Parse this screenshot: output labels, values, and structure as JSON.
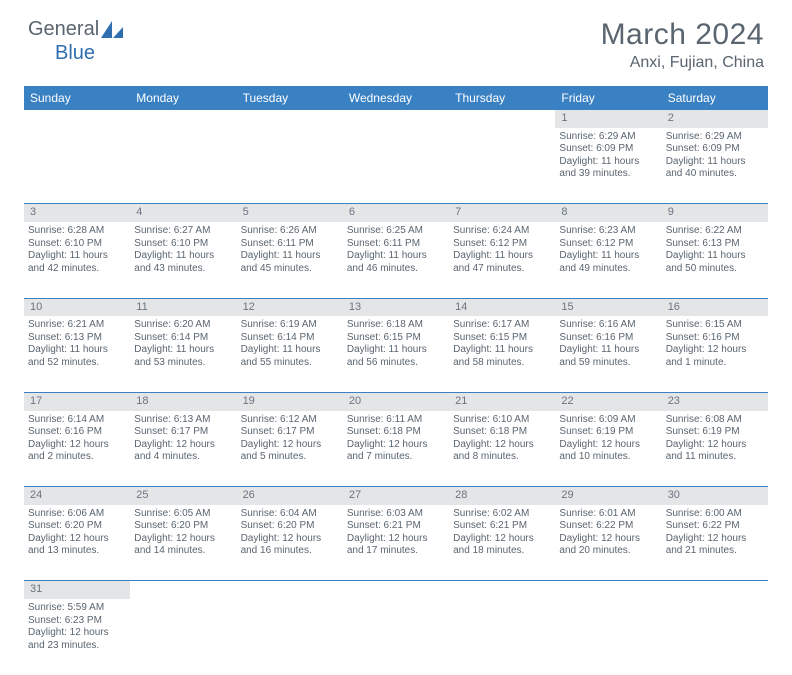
{
  "brand": {
    "text1": "General",
    "text2": "Blue",
    "color1": "#5a6570",
    "color2": "#2f6fb0"
  },
  "title": "March 2024",
  "location": "Anxi, Fujian, China",
  "colors": {
    "header_bg": "#3a81c4",
    "header_text": "#ffffff",
    "daynum_bg": "#e4e5e7",
    "border": "#3a81c4",
    "text": "#5a6570"
  },
  "weekdays": [
    "Sunday",
    "Monday",
    "Tuesday",
    "Wednesday",
    "Thursday",
    "Friday",
    "Saturday"
  ],
  "weeks": [
    [
      null,
      null,
      null,
      null,
      null,
      {
        "n": "1",
        "sunrise": "6:29 AM",
        "sunset": "6:09 PM",
        "day": "11 hours and 39 minutes."
      },
      {
        "n": "2",
        "sunrise": "6:29 AM",
        "sunset": "6:09 PM",
        "day": "11 hours and 40 minutes."
      }
    ],
    [
      {
        "n": "3",
        "sunrise": "6:28 AM",
        "sunset": "6:10 PM",
        "day": "11 hours and 42 minutes."
      },
      {
        "n": "4",
        "sunrise": "6:27 AM",
        "sunset": "6:10 PM",
        "day": "11 hours and 43 minutes."
      },
      {
        "n": "5",
        "sunrise": "6:26 AM",
        "sunset": "6:11 PM",
        "day": "11 hours and 45 minutes."
      },
      {
        "n": "6",
        "sunrise": "6:25 AM",
        "sunset": "6:11 PM",
        "day": "11 hours and 46 minutes."
      },
      {
        "n": "7",
        "sunrise": "6:24 AM",
        "sunset": "6:12 PM",
        "day": "11 hours and 47 minutes."
      },
      {
        "n": "8",
        "sunrise": "6:23 AM",
        "sunset": "6:12 PM",
        "day": "11 hours and 49 minutes."
      },
      {
        "n": "9",
        "sunrise": "6:22 AM",
        "sunset": "6:13 PM",
        "day": "11 hours and 50 minutes."
      }
    ],
    [
      {
        "n": "10",
        "sunrise": "6:21 AM",
        "sunset": "6:13 PM",
        "day": "11 hours and 52 minutes."
      },
      {
        "n": "11",
        "sunrise": "6:20 AM",
        "sunset": "6:14 PM",
        "day": "11 hours and 53 minutes."
      },
      {
        "n": "12",
        "sunrise": "6:19 AM",
        "sunset": "6:14 PM",
        "day": "11 hours and 55 minutes."
      },
      {
        "n": "13",
        "sunrise": "6:18 AM",
        "sunset": "6:15 PM",
        "day": "11 hours and 56 minutes."
      },
      {
        "n": "14",
        "sunrise": "6:17 AM",
        "sunset": "6:15 PM",
        "day": "11 hours and 58 minutes."
      },
      {
        "n": "15",
        "sunrise": "6:16 AM",
        "sunset": "6:16 PM",
        "day": "11 hours and 59 minutes."
      },
      {
        "n": "16",
        "sunrise": "6:15 AM",
        "sunset": "6:16 PM",
        "day": "12 hours and 1 minute."
      }
    ],
    [
      {
        "n": "17",
        "sunrise": "6:14 AM",
        "sunset": "6:16 PM",
        "day": "12 hours and 2 minutes."
      },
      {
        "n": "18",
        "sunrise": "6:13 AM",
        "sunset": "6:17 PM",
        "day": "12 hours and 4 minutes."
      },
      {
        "n": "19",
        "sunrise": "6:12 AM",
        "sunset": "6:17 PM",
        "day": "12 hours and 5 minutes."
      },
      {
        "n": "20",
        "sunrise": "6:11 AM",
        "sunset": "6:18 PM",
        "day": "12 hours and 7 minutes."
      },
      {
        "n": "21",
        "sunrise": "6:10 AM",
        "sunset": "6:18 PM",
        "day": "12 hours and 8 minutes."
      },
      {
        "n": "22",
        "sunrise": "6:09 AM",
        "sunset": "6:19 PM",
        "day": "12 hours and 10 minutes."
      },
      {
        "n": "23",
        "sunrise": "6:08 AM",
        "sunset": "6:19 PM",
        "day": "12 hours and 11 minutes."
      }
    ],
    [
      {
        "n": "24",
        "sunrise": "6:06 AM",
        "sunset": "6:20 PM",
        "day": "12 hours and 13 minutes."
      },
      {
        "n": "25",
        "sunrise": "6:05 AM",
        "sunset": "6:20 PM",
        "day": "12 hours and 14 minutes."
      },
      {
        "n": "26",
        "sunrise": "6:04 AM",
        "sunset": "6:20 PM",
        "day": "12 hours and 16 minutes."
      },
      {
        "n": "27",
        "sunrise": "6:03 AM",
        "sunset": "6:21 PM",
        "day": "12 hours and 17 minutes."
      },
      {
        "n": "28",
        "sunrise": "6:02 AM",
        "sunset": "6:21 PM",
        "day": "12 hours and 18 minutes."
      },
      {
        "n": "29",
        "sunrise": "6:01 AM",
        "sunset": "6:22 PM",
        "day": "12 hours and 20 minutes."
      },
      {
        "n": "30",
        "sunrise": "6:00 AM",
        "sunset": "6:22 PM",
        "day": "12 hours and 21 minutes."
      }
    ],
    [
      {
        "n": "31",
        "sunrise": "5:59 AM",
        "sunset": "6:23 PM",
        "day": "12 hours and 23 minutes."
      },
      null,
      null,
      null,
      null,
      null,
      null
    ]
  ]
}
